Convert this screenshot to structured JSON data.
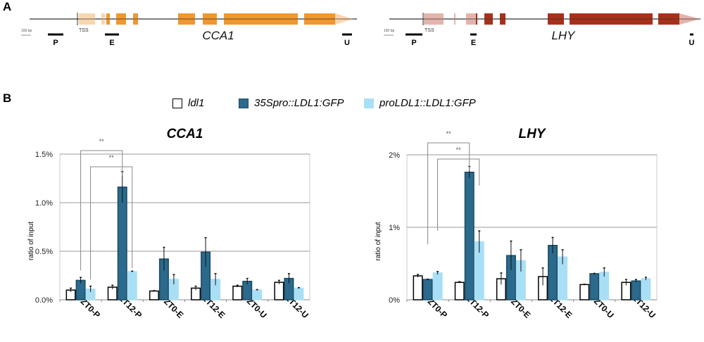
{
  "panels": {
    "a": "A",
    "b": "B"
  },
  "genes": [
    {
      "name": "CCA1",
      "tss": "TSS",
      "scale": "100 bp",
      "regions": [
        "P",
        "E",
        "U"
      ],
      "color": "#f0972e",
      "light": "#f9d6ae"
    },
    {
      "name": "LHY",
      "tss": "TSS",
      "scale": "100 bp",
      "regions": [
        "P",
        "E",
        "U"
      ],
      "color": "#a8301a",
      "light": "#e3b4ac"
    }
  ],
  "legend": [
    {
      "label": "ldl1",
      "color": "#ffffff"
    },
    {
      "label": "35Spro::LDL1:GFP",
      "color": "#2b6a8c"
    },
    {
      "label": "proLDL1::LDL1:GFP",
      "color": "#a9dff5"
    }
  ],
  "chart_data": [
    {
      "type": "bar",
      "title": "CCA1",
      "ylabel": "",
      "ylim": [
        0,
        1.5
      ],
      "yticks": [
        "0.0%",
        "0.5%",
        "1.0%",
        "1.5%"
      ],
      "ytick_values": [
        0,
        0.5,
        1.0,
        1.5
      ],
      "categories": [
        "ZT0-P",
        "ZT12-P",
        "ZT0-E",
        "ZT12-E",
        "ZT0-U",
        "ZT12-U"
      ],
      "series": [
        {
          "name": "ldl1",
          "values": [
            0.1,
            0.13,
            0.09,
            0.12,
            0.14,
            0.18
          ],
          "errors": [
            0.02,
            0.02,
            0.005,
            0.02,
            0.01,
            0.02
          ]
        },
        {
          "name": "35Spro::LDL1:GFP",
          "values": [
            0.2,
            1.16,
            0.42,
            0.49,
            0.19,
            0.22
          ],
          "errors": [
            0.03,
            0.16,
            0.12,
            0.15,
            0.03,
            0.05
          ]
        },
        {
          "name": "proLDL1::LDL1:GFP",
          "values": [
            0.11,
            0.29,
            0.21,
            0.21,
            0.1,
            0.12
          ],
          "errors": [
            0.03,
            0.005,
            0.05,
            0.06,
            0.005,
            0.005
          ]
        }
      ],
      "significance": [
        {
          "label": "**",
          "series": 1,
          "from": 0,
          "to": 1
        },
        {
          "label": "**",
          "series": 2,
          "from": 0,
          "to": 1
        }
      ]
    },
    {
      "type": "bar",
      "title": "LHY",
      "ylabel": "ratio of input",
      "ylim": [
        0,
        2
      ],
      "yticks": [
        "0%",
        "1%",
        "2%"
      ],
      "ytick_values": [
        0,
        1,
        2
      ],
      "categories": [
        "ZT0-P",
        "ZT12-P",
        "ZT0-E",
        "ZT12-E",
        "ZT0-U",
        "ZT12-U"
      ],
      "series": [
        {
          "name": "ldl1",
          "values": [
            0.33,
            0.24,
            0.29,
            0.32,
            0.21,
            0.24
          ],
          "errors": [
            0.02,
            0.01,
            0.08,
            0.12,
            0.005,
            0.04
          ]
        },
        {
          "name": "35Spro::LDL1:GFP",
          "values": [
            0.28,
            1.76,
            0.61,
            0.75,
            0.36,
            0.26
          ],
          "errors": [
            0.005,
            0.08,
            0.2,
            0.11,
            0.005,
            0.02
          ]
        },
        {
          "name": "proLDL1::LDL1:GFP",
          "values": [
            0.37,
            0.8,
            0.54,
            0.59,
            0.38,
            0.29
          ],
          "errors": [
            0.02,
            0.15,
            0.15,
            0.1,
            0.06,
            0.02
          ]
        }
      ],
      "significance": [
        {
          "label": "**",
          "series": 1,
          "from": 0,
          "to": 1
        },
        {
          "label": "**",
          "series": 2,
          "from": 0,
          "to": 1
        }
      ]
    }
  ],
  "left_ylabel": "ratio of input"
}
